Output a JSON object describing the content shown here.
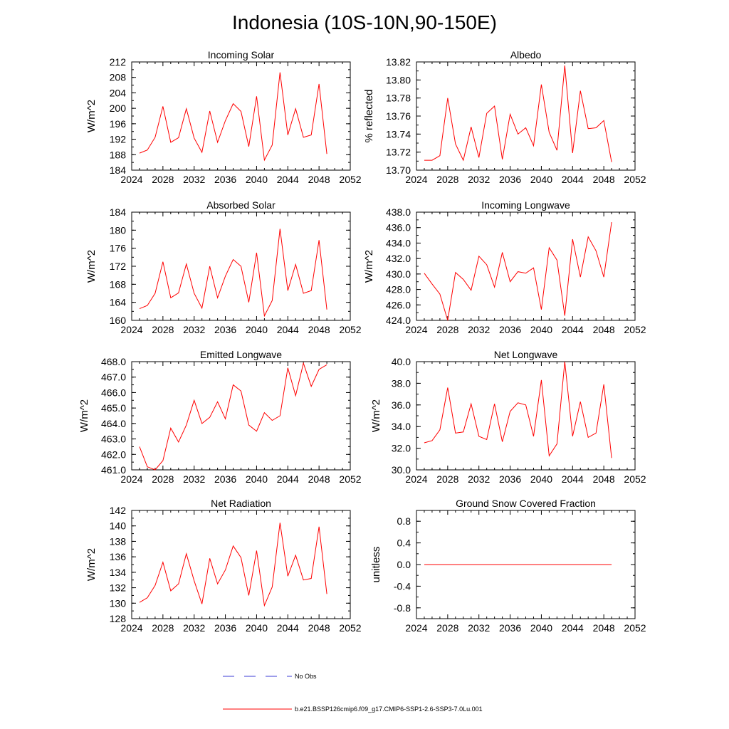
{
  "figure": {
    "title": "Indonesia (10S-10N,90-150E)",
    "legend": [
      {
        "label": "No Obs",
        "color": "#3b3bd6",
        "style": "dashed"
      },
      {
        "label": "b.e21.BSSP126cmip6.f09_g17.CMIP6-SSP1-2.6-SSP3-7.0Lu.001",
        "color": "#ff0000",
        "style": "solid"
      }
    ],
    "line_color": "#ff0000"
  },
  "chart_data": [
    {
      "type": "line",
      "title": "Incoming Solar",
      "ylabel": "W/m^2",
      "xlim": [
        2024,
        2052
      ],
      "ylim": [
        184,
        212
      ],
      "xticks": [
        "2024",
        "2028",
        "2032",
        "2036",
        "2040",
        "2044",
        "2048",
        "2052"
      ],
      "yticks": [
        "184",
        "188",
        "192",
        "196",
        "200",
        "204",
        "208",
        "212"
      ],
      "x": [
        2025,
        2026,
        2027,
        2028,
        2029,
        2030,
        2031,
        2032,
        2033,
        2034,
        2035,
        2036,
        2037,
        2038,
        2039,
        2040,
        2041,
        2042,
        2043,
        2044,
        2045,
        2046,
        2047,
        2048,
        2049
      ],
      "values": [
        188.4,
        189.2,
        192.5,
        200.5,
        191.2,
        192.4,
        199.9,
        192.3,
        188.6,
        199.3,
        191.2,
        196.8,
        201.2,
        199.2,
        190.1,
        203.1,
        186.6,
        190.5,
        209.3,
        193.1,
        199.9,
        192.5,
        193.1,
        206.3,
        188.2
      ]
    },
    {
      "type": "line",
      "title": "Albedo",
      "ylabel": "% reflected",
      "xlim": [
        2024,
        2052
      ],
      "ylim": [
        13.7,
        13.82
      ],
      "xticks": [
        "2024",
        "2028",
        "2032",
        "2036",
        "2040",
        "2044",
        "2048",
        "2052"
      ],
      "yticks": [
        "13.70",
        "13.72",
        "13.74",
        "13.76",
        "13.78",
        "13.80",
        "13.82"
      ],
      "x": [
        2025,
        2026,
        2027,
        2028,
        2029,
        2030,
        2031,
        2032,
        2033,
        2034,
        2035,
        2036,
        2037,
        2038,
        2039,
        2040,
        2041,
        2042,
        2043,
        2044,
        2045,
        2046,
        2047,
        2048,
        2049
      ],
      "values": [
        13.711,
        13.711,
        13.716,
        13.78,
        13.729,
        13.711,
        13.748,
        13.714,
        13.763,
        13.771,
        13.712,
        13.762,
        13.74,
        13.747,
        13.727,
        13.795,
        13.742,
        13.722,
        13.816,
        13.719,
        13.788,
        13.746,
        13.747,
        13.755,
        13.709
      ]
    },
    {
      "type": "line",
      "title": "Absorbed Solar",
      "ylabel": "W/m^2",
      "xlim": [
        2024,
        2052
      ],
      "ylim": [
        160,
        184
      ],
      "xticks": [
        "2024",
        "2028",
        "2032",
        "2036",
        "2040",
        "2044",
        "2048",
        "2052"
      ],
      "yticks": [
        "160",
        "164",
        "168",
        "172",
        "176",
        "180",
        "184"
      ],
      "x": [
        2025,
        2026,
        2027,
        2028,
        2029,
        2030,
        2031,
        2032,
        2033,
        2034,
        2035,
        2036,
        2037,
        2038,
        2039,
        2040,
        2041,
        2042,
        2043,
        2044,
        2045,
        2046,
        2047,
        2048,
        2049
      ],
      "values": [
        162.6,
        163.3,
        166.0,
        173.0,
        165.0,
        166.1,
        172.5,
        166.0,
        162.7,
        172.0,
        165.0,
        169.8,
        173.5,
        172.0,
        164.0,
        175.0,
        161.0,
        164.4,
        180.3,
        166.6,
        172.4,
        166.0,
        166.6,
        177.8,
        162.4
      ]
    },
    {
      "type": "line",
      "title": "Incoming Longwave",
      "ylabel": "W/m^2",
      "xlim": [
        2024,
        2052
      ],
      "ylim": [
        424,
        438
      ],
      "xticks": [
        "2024",
        "2028",
        "2032",
        "2036",
        "2040",
        "2044",
        "2048",
        "2052"
      ],
      "yticks": [
        "424.0",
        "426.0",
        "428.0",
        "430.0",
        "432.0",
        "434.0",
        "436.0",
        "438.0"
      ],
      "x": [
        2025,
        2026,
        2027,
        2028,
        2029,
        2030,
        2031,
        2032,
        2033,
        2034,
        2035,
        2036,
        2037,
        2038,
        2039,
        2040,
        2041,
        2042,
        2043,
        2044,
        2045,
        2046,
        2047,
        2048,
        2049
      ],
      "values": [
        430.1,
        428.7,
        427.4,
        424.0,
        430.2,
        429.3,
        427.9,
        432.3,
        431.2,
        428.3,
        432.8,
        429.0,
        430.3,
        430.1,
        430.8,
        425.4,
        433.4,
        431.8,
        424.6,
        434.5,
        429.6,
        434.8,
        433.0,
        429.6,
        436.7
      ]
    },
    {
      "type": "line",
      "title": "Emitted Longwave",
      "ylabel": "W/m^2",
      "xlim": [
        2024,
        2052
      ],
      "ylim": [
        461,
        468
      ],
      "xticks": [
        "2024",
        "2028",
        "2032",
        "2036",
        "2040",
        "2044",
        "2048",
        "2052"
      ],
      "yticks": [
        "461.0",
        "462.0",
        "463.0",
        "464.0",
        "465.0",
        "466.0",
        "467.0",
        "468.0"
      ],
      "x": [
        2025,
        2026,
        2027,
        2028,
        2029,
        2030,
        2031,
        2032,
        2033,
        2034,
        2035,
        2036,
        2037,
        2038,
        2039,
        2040,
        2041,
        2042,
        2043,
        2044,
        2045,
        2046,
        2047,
        2048,
        2049
      ],
      "values": [
        462.5,
        461.2,
        461.0,
        461.6,
        463.7,
        462.8,
        463.9,
        465.5,
        464.0,
        464.4,
        465.4,
        464.3,
        466.5,
        466.1,
        463.9,
        463.5,
        464.7,
        464.2,
        464.5,
        467.6,
        465.8,
        467.9,
        466.4,
        467.5,
        467.8
      ]
    },
    {
      "type": "line",
      "title": "Net Longwave",
      "ylabel": "W/m^2",
      "xlim": [
        2024,
        2052
      ],
      "ylim": [
        30,
        40
      ],
      "xticks": [
        "2024",
        "2028",
        "2032",
        "2036",
        "2040",
        "2044",
        "2048",
        "2052"
      ],
      "yticks": [
        "30.0",
        "32.0",
        "34.0",
        "36.0",
        "38.0",
        "40.0"
      ],
      "x": [
        2025,
        2026,
        2027,
        2028,
        2029,
        2030,
        2031,
        2032,
        2033,
        2034,
        2035,
        2036,
        2037,
        2038,
        2039,
        2040,
        2041,
        2042,
        2043,
        2044,
        2045,
        2046,
        2047,
        2048,
        2049
      ],
      "values": [
        32.5,
        32.7,
        33.7,
        37.6,
        33.4,
        33.5,
        36.1,
        33.1,
        32.8,
        36.1,
        32.6,
        35.4,
        36.2,
        36.0,
        33.1,
        38.3,
        31.3,
        32.4,
        40.0,
        33.1,
        36.3,
        33.0,
        33.4,
        37.9,
        31.1
      ]
    },
    {
      "type": "line",
      "title": "Net Radiation",
      "ylabel": "W/m^2",
      "xlim": [
        2024,
        2052
      ],
      "ylim": [
        128,
        142
      ],
      "xticks": [
        "2024",
        "2028",
        "2032",
        "2036",
        "2040",
        "2044",
        "2048",
        "2052"
      ],
      "yticks": [
        "128",
        "130",
        "132",
        "134",
        "136",
        "138",
        "140",
        "142"
      ],
      "x": [
        2025,
        2026,
        2027,
        2028,
        2029,
        2030,
        2031,
        2032,
        2033,
        2034,
        2035,
        2036,
        2037,
        2038,
        2039,
        2040,
        2041,
        2042,
        2043,
        2044,
        2045,
        2046,
        2047,
        2048,
        2049
      ],
      "values": [
        130.1,
        130.7,
        132.3,
        135.3,
        131.6,
        132.5,
        136.4,
        132.9,
        129.9,
        135.8,
        132.5,
        134.3,
        137.4,
        135.9,
        131.0,
        136.8,
        129.7,
        132.1,
        140.4,
        133.5,
        136.2,
        133.0,
        133.2,
        139.9,
        131.2
      ]
    },
    {
      "type": "line",
      "title": "Ground Snow Covered Fraction",
      "ylabel": "unitless",
      "xlim": [
        2024,
        2052
      ],
      "ylim": [
        -1.0,
        1.0
      ],
      "xticks": [
        "2024",
        "2028",
        "2032",
        "2036",
        "2040",
        "2044",
        "2048",
        "2052"
      ],
      "yticks": [
        "-0.8",
        "-0.4",
        "0.0",
        "0.4",
        "0.8"
      ],
      "ytick_values": [
        -0.8,
        -0.4,
        0.0,
        0.4,
        0.8
      ],
      "x": [
        2025,
        2049
      ],
      "values": [
        0.0,
        0.0
      ]
    }
  ]
}
